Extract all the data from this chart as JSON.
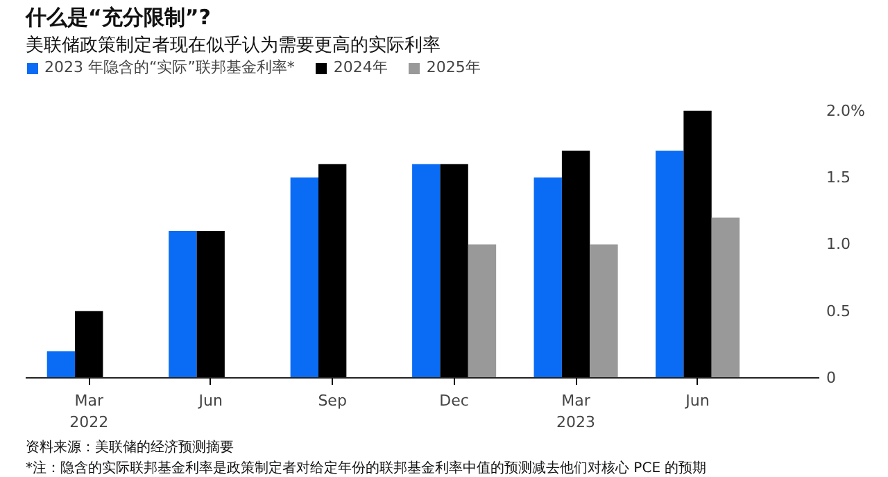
{
  "chart_data": {
    "type": "bar",
    "title": "什么是“充分限制”?",
    "subtitle": "美联储政策制定者现在似乎认为需要更高的实际利率",
    "categories": [
      "Mar\n2022",
      "Jun",
      "Sep",
      "Dec",
      "Mar\n2023",
      "Jun"
    ],
    "series": [
      {
        "name": "2023 年隐含的“实际”联邦基金利率*",
        "color": "#0a6cf5",
        "values": [
          0.2,
          1.1,
          1.5,
          1.6,
          1.5,
          1.7
        ]
      },
      {
        "name": "2024年",
        "color": "#000000",
        "values": [
          0.5,
          1.1,
          1.6,
          1.6,
          1.7,
          2.0
        ]
      },
      {
        "name": "2025年",
        "color": "#999999",
        "values": [
          null,
          null,
          null,
          1.0,
          1.0,
          1.2
        ]
      }
    ],
    "ylim": [
      0,
      2.05
    ],
    "yticks": [
      0,
      0.5,
      {
        "value": 1.0,
        "label": "1.0"
      },
      1.5,
      {
        "value": 2.0,
        "label": "2.0%"
      }
    ],
    "grid": false,
    "legend": "top",
    "annotations": [
      "资料来源：美联储的经济预测摘要",
      "*注：隐含的实际联邦基金利率是政策制定者对给定年份的联邦基金利率中值的预测减去他们对核心 PCE 的预期"
    ]
  }
}
